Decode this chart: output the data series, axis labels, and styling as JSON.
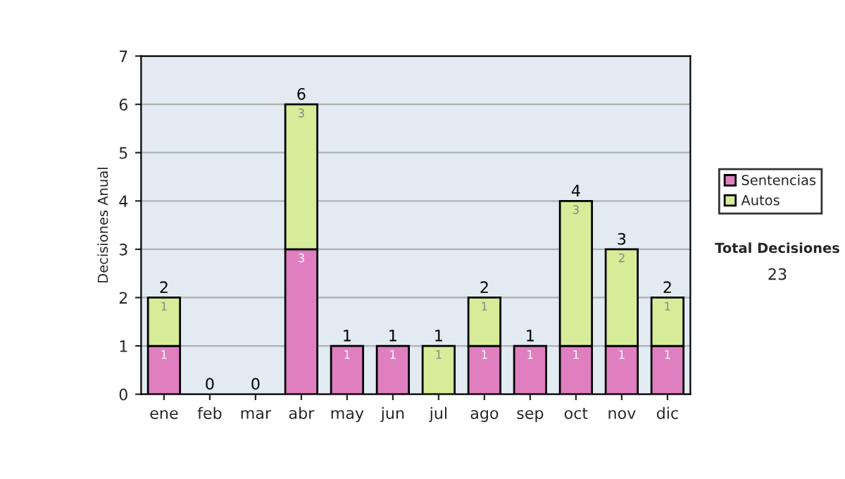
{
  "chart_data": {
    "type": "bar",
    "stacked": true,
    "ylabel": "Decisiones Anual",
    "categories": [
      "ene",
      "feb",
      "mar",
      "abr",
      "may",
      "jun",
      "jul",
      "ago",
      "sep",
      "oct",
      "nov",
      "dic"
    ],
    "series": [
      {
        "name": "Sentencias",
        "color": "#e07fc0",
        "values": [
          1,
          0,
          0,
          3,
          1,
          1,
          0,
          1,
          1,
          1,
          1,
          1
        ],
        "value_labels": [
          "1",
          null,
          null,
          "3",
          "1",
          "1",
          null,
          "1",
          "1",
          "1",
          "1",
          "1"
        ]
      },
      {
        "name": "Autos",
        "color": "#d6ec98",
        "values": [
          1,
          0,
          0,
          3,
          0,
          0,
          1,
          1,
          0,
          3,
          2,
          1
        ],
        "value_labels": [
          "1",
          null,
          null,
          "3",
          null,
          null,
          "1",
          "1",
          null,
          "3",
          "2",
          "1"
        ]
      }
    ],
    "totals": [
      "2",
      "0",
      "0",
      "6",
      "1",
      "1",
      "1",
      "2",
      "1",
      "4",
      "3",
      "2"
    ],
    "ylim": [
      0,
      7
    ],
    "yticks": [
      0,
      1,
      2,
      3,
      4,
      5,
      6,
      7
    ],
    "grid": "y",
    "legend": "right",
    "annotations": [
      "Total Decisiones",
      "23"
    ]
  }
}
